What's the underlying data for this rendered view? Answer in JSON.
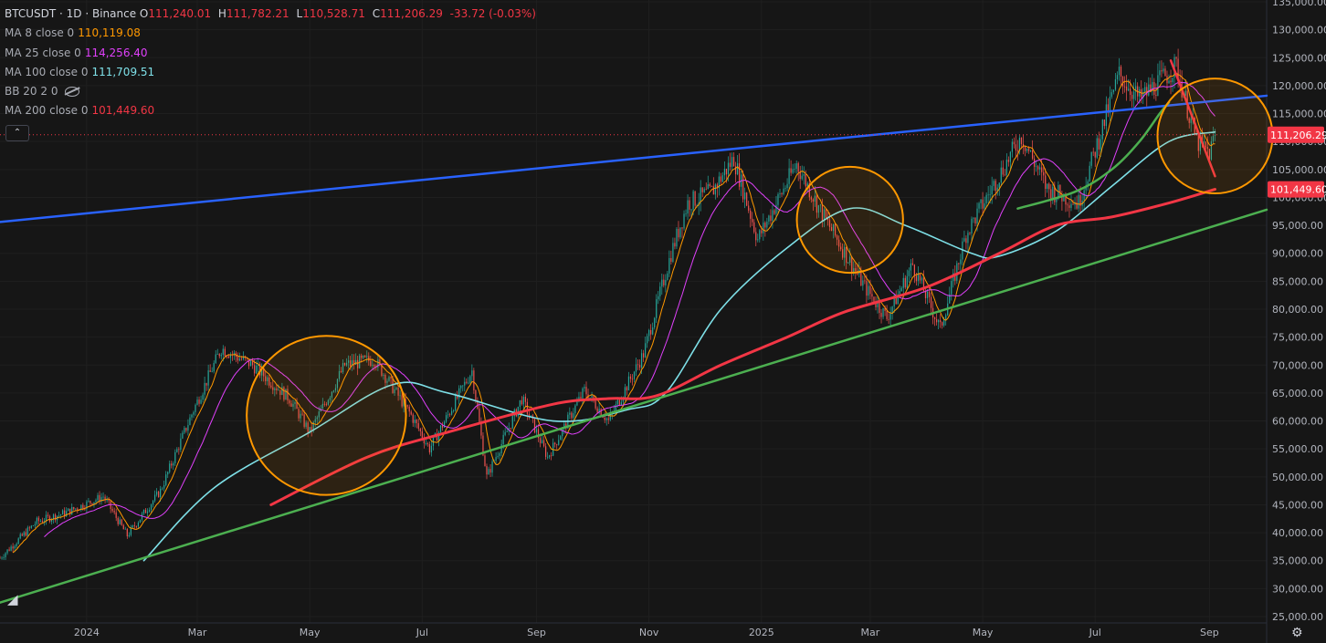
{
  "header": {
    "symbol": "BTCUSDT · 1D · Binance",
    "open_label": "O",
    "open": "111,240.01",
    "high_label": "H",
    "high": "111,782.21",
    "low_label": "L",
    "low": "110,528.71",
    "close_label": "C",
    "close": "111,206.29",
    "change": "-33.72 (-0.03%)"
  },
  "indicators": [
    {
      "name": "MA 8 close 0",
      "value": "110,119.08",
      "color": "#ff9800"
    },
    {
      "name": "MA 25 close 0",
      "value": "114,256.40",
      "color": "#e040fb"
    },
    {
      "name": "MA 100 close 0",
      "value": "111,709.51",
      "color": "#7ee0e8"
    },
    {
      "name": "BB 20 2 0",
      "value": "",
      "color": "#a8abb3"
    },
    {
      "name": "MA 200 close 0",
      "value": "101,449.60",
      "color": "#f23645"
    }
  ],
  "collapse_icon": "chevron-up-icon",
  "price_badges": {
    "last_price": "111,206.29",
    "ma200": "101,449.60"
  },
  "chart_data": {
    "type": "candlestick",
    "symbol": "BTCUSDT",
    "interval": "1D",
    "exchange": "Binance",
    "ylim": [
      25000,
      135000
    ],
    "y_ticks": [
      "135,000.00",
      "130,000.00",
      "125,000.00",
      "120,000.00",
      "115,000.00",
      "110,000.00",
      "105,000.00",
      "100,000.00",
      "95,000.00",
      "90,000.00",
      "85,000.00",
      "80,000.00",
      "75,000.00",
      "70,000.00",
      "65,000.00",
      "60,000.00",
      "55,000.00",
      "50,000.00",
      "45,000.00",
      "40,000.00",
      "35,000.00",
      "30,000.00",
      "25,000.00"
    ],
    "x_ticks": [
      "2024",
      "Mar",
      "May",
      "Jul",
      "Sep",
      "Nov",
      "2025",
      "Mar",
      "May",
      "Jul",
      "Sep"
    ],
    "x_range": [
      "2023-11-15",
      "2025-10-02"
    ],
    "price_path": [
      [
        "2023-11-15",
        35500
      ],
      [
        "2023-12-05",
        42000
      ],
      [
        "2023-12-20",
        43500
      ],
      [
        "2024-01-10",
        46500
      ],
      [
        "2024-01-23",
        39500
      ],
      [
        "2024-02-10",
        47500
      ],
      [
        "2024-02-28",
        62000
      ],
      [
        "2024-03-14",
        73000
      ],
      [
        "2024-03-31",
        70000
      ],
      [
        "2024-04-20",
        64000
      ],
      [
        "2024-05-01",
        58000
      ],
      [
        "2024-05-20",
        70000
      ],
      [
        "2024-06-05",
        71000
      ],
      [
        "2024-06-25",
        61000
      ],
      [
        "2024-07-05",
        55000
      ],
      [
        "2024-07-28",
        69000
      ],
      [
        "2024-08-05",
        50000
      ],
      [
        "2024-08-24",
        64000
      ],
      [
        "2024-09-07",
        53500
      ],
      [
        "2024-09-27",
        65500
      ],
      [
        "2024-10-10",
        60000
      ],
      [
        "2024-10-29",
        72000
      ],
      [
        "2024-11-13",
        90000
      ],
      [
        "2024-11-22",
        99000
      ],
      [
        "2024-12-05",
        101000
      ],
      [
        "2024-12-17",
        107000
      ],
      [
        "2024-12-30",
        92500
      ],
      [
        "2025-01-20",
        106000
      ],
      [
        "2025-02-03",
        97000
      ],
      [
        "2025-02-26",
        84000
      ],
      [
        "2025-03-10",
        78500
      ],
      [
        "2025-03-24",
        88000
      ],
      [
        "2025-04-08",
        76500
      ],
      [
        "2025-04-22",
        93500
      ],
      [
        "2025-05-22",
        111000
      ],
      [
        "2025-06-05",
        101500
      ],
      [
        "2025-06-22",
        99000
      ],
      [
        "2025-07-14",
        122000
      ],
      [
        "2025-07-25",
        117500
      ],
      [
        "2025-08-14",
        123500
      ],
      [
        "2025-08-25",
        110000
      ],
      [
        "2025-09-01",
        108000
      ],
      [
        "2025-09-04",
        111206
      ]
    ],
    "series": [
      {
        "name": "MA 8 close 0",
        "color": "#ff9800",
        "last": 110119.08
      },
      {
        "name": "MA 25 close 0",
        "color": "#e040fb",
        "last": 114256.4
      },
      {
        "name": "MA 100 close 0",
        "color": "#7ee0e8",
        "last": 111709.51,
        "points": [
          [
            "2024-02-01",
            35000
          ],
          [
            "2024-03-10",
            48000
          ],
          [
            "2024-05-01",
            58000
          ],
          [
            "2024-06-15",
            66500
          ],
          [
            "2024-07-15",
            65000
          ],
          [
            "2024-09-10",
            60000
          ],
          [
            "2024-10-20",
            62000
          ],
          [
            "2024-11-10",
            65000
          ],
          [
            "2024-12-10",
            80000
          ],
          [
            "2025-01-15",
            91000
          ],
          [
            "2025-02-18",
            98000
          ],
          [
            "2025-03-20",
            95000
          ],
          [
            "2025-04-25",
            90000
          ],
          [
            "2025-05-10",
            89500
          ],
          [
            "2025-06-10",
            94000
          ],
          [
            "2025-07-10",
            102000
          ],
          [
            "2025-08-10",
            110000
          ],
          [
            "2025-09-04",
            111709
          ]
        ]
      },
      {
        "name": "MA 200 close 0",
        "color": "#f23645",
        "last": 101449.6,
        "points": [
          [
            "2024-04-10",
            45000
          ],
          [
            "2024-06-01",
            53500
          ],
          [
            "2024-07-15",
            58000
          ],
          [
            "2024-09-10",
            63000
          ],
          [
            "2024-10-10",
            64000
          ],
          [
            "2024-11-05",
            64500
          ],
          [
            "2024-12-10",
            70000
          ],
          [
            "2025-01-15",
            75000
          ],
          [
            "2025-02-15",
            79500
          ],
          [
            "2025-04-01",
            84000
          ],
          [
            "2025-05-10",
            90000
          ],
          [
            "2025-06-10",
            95000
          ],
          [
            "2025-07-10",
            96500
          ],
          [
            "2025-08-10",
            99000
          ],
          [
            "2025-09-04",
            101449
          ]
        ]
      }
    ],
    "drawings": [
      {
        "kind": "trendline",
        "color": "#2962ff",
        "from": [
          "2023-11-15",
          95600
        ],
        "to": [
          "2025-10-02",
          118200
        ]
      },
      {
        "kind": "trendline",
        "color": "#4caf50",
        "from": [
          "2023-11-15",
          27500
        ],
        "to": [
          "2025-10-02",
          97800
        ]
      },
      {
        "kind": "curve",
        "color": "#4caf50",
        "points": [
          [
            "2025-05-20",
            98000
          ],
          [
            "2025-06-20",
            101000
          ],
          [
            "2025-07-10",
            105000
          ],
          [
            "2025-07-25",
            110000
          ],
          [
            "2025-08-05",
            115000
          ],
          [
            "2025-08-10",
            117000
          ]
        ]
      },
      {
        "kind": "trendline",
        "color": "#f23645",
        "from": [
          "2025-08-11",
          124500
        ],
        "to": [
          "2025-09-04",
          103800
        ]
      },
      {
        "kind": "circle",
        "color": "#ff9800",
        "center": [
          "2024-05-10",
          61000
        ],
        "r_days": 18
      },
      {
        "kind": "circle",
        "color": "#ff9800",
        "center": [
          "2025-02-18",
          96000
        ],
        "r_days": 12
      },
      {
        "kind": "circle",
        "color": "#ff9800",
        "center": [
          "2025-09-04",
          111000
        ],
        "r_days": 13
      }
    ]
  }
}
